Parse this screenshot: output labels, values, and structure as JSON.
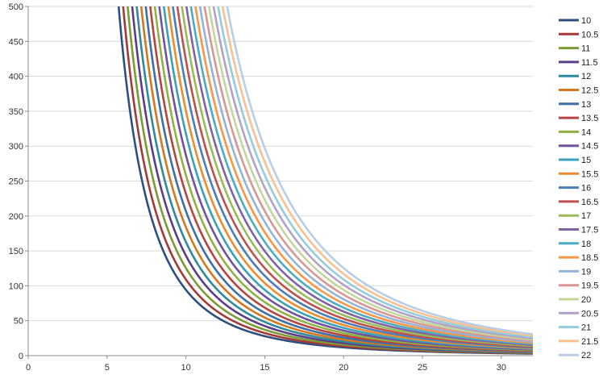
{
  "chart_data": {
    "type": "line",
    "title": "",
    "xlabel": "",
    "ylabel": "",
    "xlim": [
      0,
      32
    ],
    "ylim": [
      0,
      500
    ],
    "x_ticks": [
      "0",
      "5",
      "10",
      "15",
      "20",
      "25",
      "30"
    ],
    "y_ticks": [
      "0",
      "50",
      "100",
      "150",
      "200",
      "250",
      "300",
      "350",
      "400",
      "450",
      "500"
    ],
    "grid": "horizontal",
    "legend_position": "right",
    "model": "y = k * (a / x)^3, where a is the series value; k ≈ 94.2",
    "series": [
      {
        "name": "10",
        "a": 10,
        "color": "#2F4F7F"
      },
      {
        "name": "10.5",
        "a": 10.5,
        "color": "#A33A37"
      },
      {
        "name": "11",
        "a": 11,
        "color": "#7E9A35"
      },
      {
        "name": "11.5",
        "a": 11.5,
        "color": "#5B3F86"
      },
      {
        "name": "12",
        "a": 12,
        "color": "#2F8A9D"
      },
      {
        "name": "12.5",
        "a": 12.5,
        "color": "#D4771F"
      },
      {
        "name": "13",
        "a": 13,
        "color": "#3E6FA5"
      },
      {
        "name": "13.5",
        "a": 13.5,
        "color": "#B8443F"
      },
      {
        "name": "14",
        "a": 14,
        "color": "#92B143"
      },
      {
        "name": "14.5",
        "a": 14.5,
        "color": "#70529D"
      },
      {
        "name": "15",
        "a": 15,
        "color": "#3AA2B8"
      },
      {
        "name": "15.5",
        "a": 15.5,
        "color": "#EC8B2F"
      },
      {
        "name": "16",
        "a": 16,
        "color": "#4C7EB6"
      },
      {
        "name": "16.5",
        "a": 16.5,
        "color": "#C0504D"
      },
      {
        "name": "17",
        "a": 17,
        "color": "#9BBB59"
      },
      {
        "name": "17.5",
        "a": 17.5,
        "color": "#8064A2"
      },
      {
        "name": "18",
        "a": 18,
        "color": "#4BACC6"
      },
      {
        "name": "18.5",
        "a": 18.5,
        "color": "#F79646"
      },
      {
        "name": "19",
        "a": 19,
        "color": "#95B3D7"
      },
      {
        "name": "19.5",
        "a": 19.5,
        "color": "#D99694"
      },
      {
        "name": "20",
        "a": 20,
        "color": "#C3D69B"
      },
      {
        "name": "20.5",
        "a": 20.5,
        "color": "#B3A2C7"
      },
      {
        "name": "21",
        "a": 21,
        "color": "#93CDDD"
      },
      {
        "name": "21.5",
        "a": 21.5,
        "color": "#FAC090"
      },
      {
        "name": "22",
        "a": 22,
        "color": "#B9CDE5"
      }
    ]
  }
}
